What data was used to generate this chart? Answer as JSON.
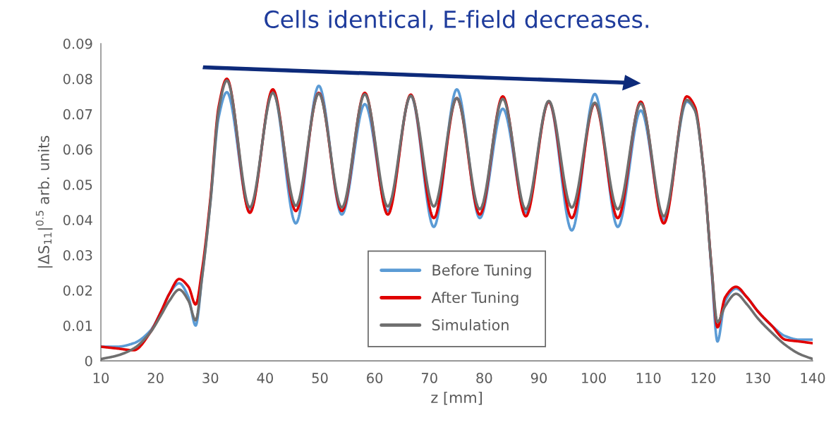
{
  "chart_data": {
    "type": "line",
    "title": "Cells identical, E-field decreases.",
    "xlabel": "z [mm]",
    "ylabel": "|ΔS$_{11}$|$^{0.5}$ arb. units",
    "x": [
      10,
      13,
      16,
      19,
      21,
      22.5,
      24.3,
      26,
      27.3,
      28.5,
      30,
      31.5,
      33,
      37.2,
      41.4,
      45.6,
      49.8,
      54,
      58.2,
      62.4,
      66.6,
      70.8,
      75,
      79.2,
      83.4,
      87.6,
      91.8,
      96,
      100.2,
      104.4,
      108.6,
      112.8,
      117,
      118.5,
      120,
      121.5,
      122.6,
      124,
      126,
      128,
      130,
      132.5,
      135,
      137.5,
      140
    ],
    "series": [
      {
        "name": "Before Tuning",
        "color": "#5b9bd5",
        "values": [
          0.004,
          0.004,
          0.005,
          0.0085,
          0.014,
          0.019,
          0.022,
          0.018,
          0.01,
          0.024,
          0.045,
          0.069,
          0.0762,
          0.0425,
          0.0765,
          0.039,
          0.078,
          0.0415,
          0.0728,
          0.0425,
          0.0752,
          0.038,
          0.077,
          0.0405,
          0.0715,
          0.042,
          0.0735,
          0.037,
          0.0757,
          0.038,
          0.071,
          0.04,
          0.0735,
          0.071,
          0.055,
          0.026,
          0.0055,
          0.017,
          0.0205,
          0.018,
          0.014,
          0.01,
          0.007,
          0.006,
          0.006
        ]
      },
      {
        "name": "After Tuning",
        "color": "#e00000",
        "values": [
          0.004,
          0.0035,
          0.003,
          0.008,
          0.014,
          0.019,
          0.0232,
          0.021,
          0.016,
          0.026,
          0.046,
          0.072,
          0.08,
          0.042,
          0.077,
          0.0425,
          0.076,
          0.0425,
          0.076,
          0.0415,
          0.0755,
          0.0405,
          0.0745,
          0.0415,
          0.075,
          0.041,
          0.0735,
          0.0405,
          0.073,
          0.0405,
          0.0735,
          0.039,
          0.075,
          0.072,
          0.055,
          0.027,
          0.0095,
          0.018,
          0.021,
          0.018,
          0.014,
          0.01,
          0.006,
          0.0055,
          0.005
        ]
      },
      {
        "name": "Simulation",
        "color": "#6f6f6f",
        "values": [
          0.0005,
          0.0015,
          0.0035,
          0.008,
          0.013,
          0.017,
          0.0202,
          0.017,
          0.0115,
          0.024,
          0.045,
          0.071,
          0.0795,
          0.0435,
          0.076,
          0.044,
          0.0758,
          0.0435,
          0.0756,
          0.0438,
          0.0752,
          0.0438,
          0.0745,
          0.043,
          0.0743,
          0.043,
          0.0737,
          0.0435,
          0.0732,
          0.043,
          0.073,
          0.041,
          0.074,
          0.071,
          0.055,
          0.027,
          0.011,
          0.0155,
          0.019,
          0.016,
          0.012,
          0.008,
          0.0045,
          0.002,
          0.0005
        ]
      }
    ],
    "xlim": [
      10,
      140
    ],
    "xticks": [
      10,
      20,
      30,
      40,
      50,
      60,
      70,
      80,
      90,
      100,
      110,
      120,
      130,
      140
    ],
    "ylim": [
      0,
      0.09
    ],
    "yticks": [
      0,
      0.01,
      0.02,
      0.03,
      0.04,
      0.05,
      0.06,
      0.07,
      0.08,
      0.09
    ],
    "grid": false,
    "legend": "bottom",
    "marker": "none",
    "line_style": "solid"
  }
}
